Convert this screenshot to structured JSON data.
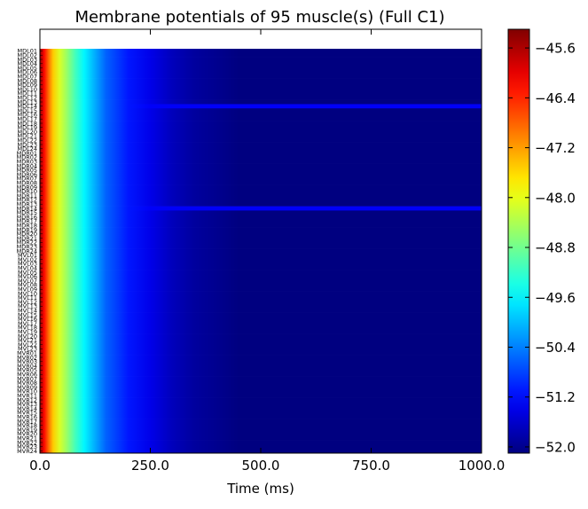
{
  "chart_data": {
    "type": "heatmap",
    "title": "Membrane potentials of 95 muscle(s) (Full C1)",
    "xlabel": "Time (ms)",
    "ylabel": "",
    "xlim": [
      0,
      1000
    ],
    "x_ticks": [
      "0.0",
      "250.0",
      "500.0",
      "750.0",
      "1000.0"
    ],
    "row_count": 95,
    "rows": [
      "MDL01",
      "MDL02",
      "MDL03",
      "MDL04",
      "MDL05",
      "MDL06",
      "MDL07",
      "MDL08",
      "MDL09",
      "MDL10",
      "MDL11",
      "MDL12",
      "MDL13",
      "MDL14",
      "MDL15",
      "MDL16",
      "MDL17",
      "MDL18",
      "MDL19",
      "MDL20",
      "MDL21",
      "MDL22",
      "MDL23",
      "MDL24",
      "MDR01",
      "MDR02",
      "MDR03",
      "MDR04",
      "MDR05",
      "MDR06",
      "MDR07",
      "MDR08",
      "MDR09",
      "MDR10",
      "MDR11",
      "MDR12",
      "MDR13",
      "MDR14",
      "MDR15",
      "MDR16",
      "MDR17",
      "MDR18",
      "MDR19",
      "MDR20",
      "MDR21",
      "MDR22",
      "MDR23",
      "MDR24",
      "MVL01",
      "MVL02",
      "MVL03",
      "MVL04",
      "MVL05",
      "MVL06",
      "MVL07",
      "MVL08",
      "MVL09",
      "MVL10",
      "MVL11",
      "MVL12",
      "MVL13",
      "MVL14",
      "MVL15",
      "MVL16",
      "MVL17",
      "MVL18",
      "MVL19",
      "MVL20",
      "MVL21",
      "MVL22",
      "MVL23",
      "MVR01",
      "MVR02",
      "MVR03",
      "MVR04",
      "MVR05",
      "MVR06",
      "MVR07",
      "MVR08",
      "MVR09",
      "MVR10",
      "MVR11",
      "MVR12",
      "MVR13",
      "MVR14",
      "MVR15",
      "MVR16",
      "MVR17",
      "MVR18",
      "MVR19",
      "MVR20",
      "MVR21",
      "MVR22",
      "MVR23",
      "MVR24"
    ],
    "highlight_rows": [
      {
        "row": "MDL14",
        "value": -51.3
      },
      {
        "row": "MDR14",
        "value": -51.3
      }
    ],
    "time_profile": {
      "t_ms": [
        0,
        5,
        10,
        20,
        30,
        45,
        60,
        80,
        100,
        125,
        150,
        200,
        250,
        300,
        350,
        400,
        450,
        1000
      ],
      "value": [
        -45.5,
        -45.8,
        -46.2,
        -46.9,
        -47.5,
        -48.1,
        -48.5,
        -49.1,
        -49.6,
        -50.1,
        -50.6,
        -51.1,
        -51.4,
        -51.7,
        -51.9,
        -52.0,
        -52.1,
        -52.1
      ]
    },
    "colorbar": {
      "colormap": "jet",
      "vmin": -52.1,
      "vmax": -45.3,
      "ticks": [
        -45.6,
        -46.4,
        -47.2,
        -48.0,
        -48.8,
        -49.6,
        -50.4,
        -51.2,
        -52.0
      ],
      "tick_labels": [
        "−45.6",
        "−46.4",
        "−47.2",
        "−48.0",
        "−48.8",
        "−49.6",
        "−50.4",
        "−51.2",
        "−52.0"
      ]
    },
    "grid": false
  }
}
